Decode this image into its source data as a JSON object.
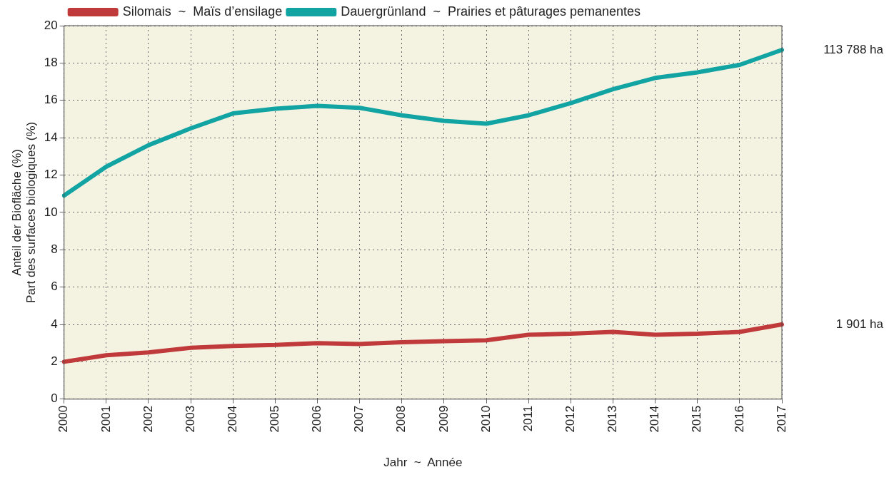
{
  "chart_data": {
    "type": "line",
    "xlabel": "Jahr  ~  Année",
    "ylabel": "Anteil der Biofläche (%)\nPart des surfaces biologiques (%)",
    "categories": [
      "2000",
      "2001",
      "2002",
      "2003",
      "2004",
      "2005",
      "2006",
      "2007",
      "2008",
      "2009",
      "2010",
      "2011",
      "2012",
      "2013",
      "2014",
      "2015",
      "2016",
      "2017"
    ],
    "series": [
      {
        "name": "Silomais  ~  Maïs d’ensilage",
        "color": "#c0393b",
        "values": [
          2.0,
          2.35,
          2.5,
          2.75,
          2.85,
          2.9,
          3.0,
          2.95,
          3.05,
          3.1,
          3.15,
          3.45,
          3.5,
          3.6,
          3.45,
          3.5,
          3.6,
          4.0
        ]
      },
      {
        "name": "Dauergrünland  ~  Prairies et pâturages pemanentes",
        "color": "#12a3a3",
        "values": [
          10.9,
          12.45,
          13.6,
          14.5,
          15.3,
          15.55,
          15.7,
          15.6,
          15.2,
          14.9,
          14.75,
          15.2,
          15.85,
          16.6,
          17.2,
          17.5,
          17.9,
          18.7
        ]
      }
    ],
    "ylim": [
      0,
      20
    ],
    "yticks": [
      0,
      2,
      4,
      6,
      8,
      10,
      12,
      14,
      16,
      18,
      20
    ],
    "grid": true,
    "legend": "top left",
    "marker": "none",
    "line_style": "solid",
    "annotations": [
      "113 788 ha",
      "1 901 ha"
    ]
  }
}
